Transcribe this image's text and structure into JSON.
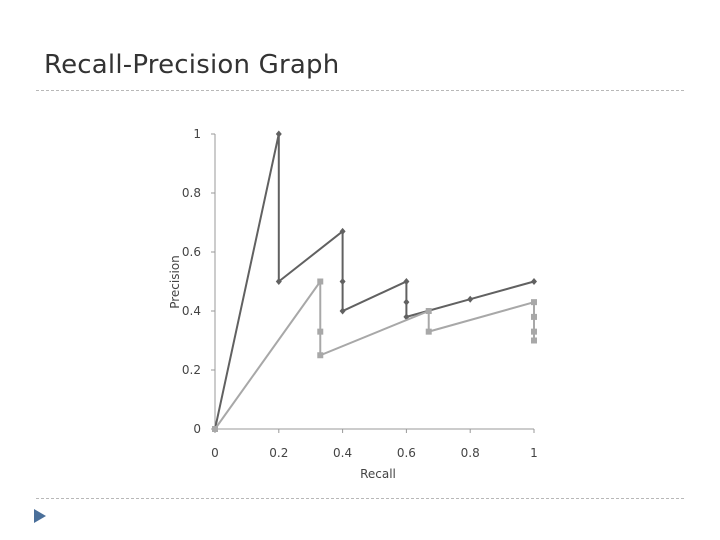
{
  "slide": {
    "title": "Recall-Precision Graph"
  },
  "chart_data": {
    "type": "line",
    "title": "",
    "xlabel": "Recall",
    "ylabel": "Precision",
    "xlim": [
      0,
      1
    ],
    "ylim": [
      0,
      1
    ],
    "x_ticks": [
      "0",
      "0.2",
      "0.4",
      "0.6",
      "0.8",
      "1"
    ],
    "y_ticks": [
      "0",
      "0.2",
      "0.4",
      "0.6",
      "0.8",
      "1"
    ],
    "grid": false,
    "legend": "none",
    "series": [
      {
        "color": "#616161",
        "marker": "diamond",
        "points": [
          [
            0,
            0
          ],
          [
            0.2,
            1
          ],
          [
            0.2,
            0.5
          ],
          [
            0.4,
            0.67
          ],
          [
            0.4,
            0.5
          ],
          [
            0.4,
            0.4
          ],
          [
            0.6,
            0.5
          ],
          [
            0.6,
            0.43
          ],
          [
            0.6,
            0.38
          ],
          [
            0.8,
            0.44
          ],
          [
            1,
            0.5
          ]
        ]
      },
      {
        "color": "#a8a8a8",
        "marker": "square",
        "points": [
          [
            0,
            0
          ],
          [
            0.33,
            0.5
          ],
          [
            0.33,
            0.33
          ],
          [
            0.33,
            0.25
          ],
          [
            0.67,
            0.4
          ],
          [
            0.67,
            0.33
          ],
          [
            1,
            0.43
          ],
          [
            1,
            0.38
          ],
          [
            1,
            0.33
          ],
          [
            1,
            0.3
          ]
        ]
      }
    ]
  }
}
